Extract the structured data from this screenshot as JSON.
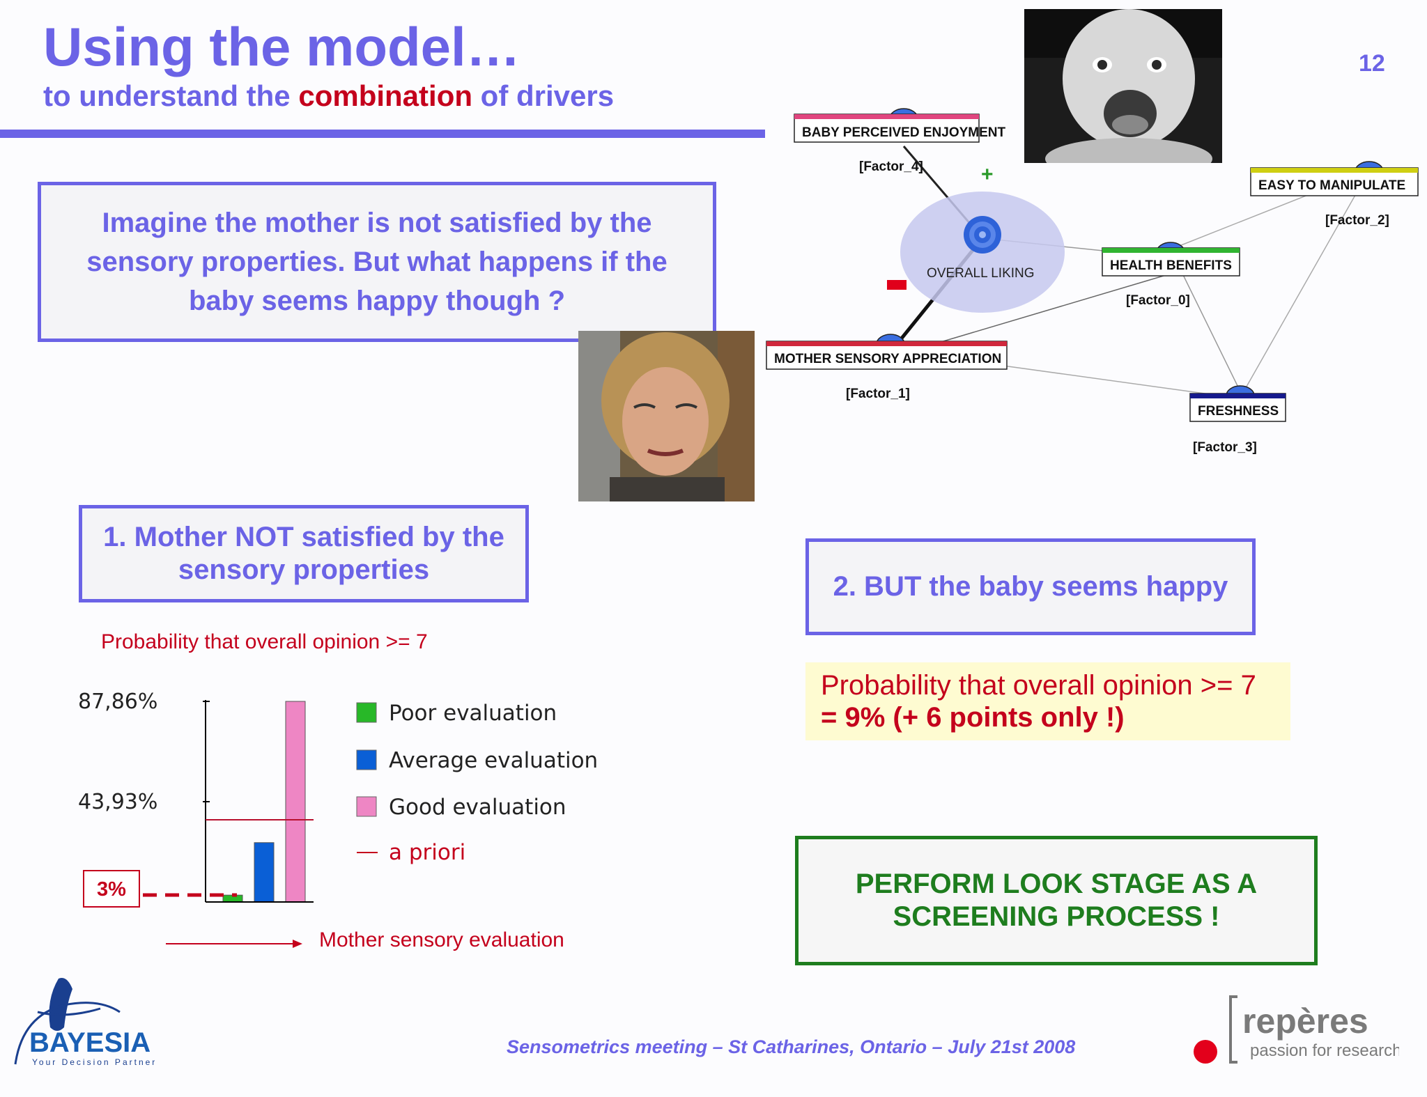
{
  "header": {
    "title": "Using the model…",
    "subtitle_before": "to understand the ",
    "subtitle_highlight": "combination",
    "subtitle_after": " of drivers",
    "slide_number": "12"
  },
  "intro": "Imagine the mother is not satisfied by the sensory properties. But what happens if the baby seems happy though ?",
  "step1": "1. Mother NOT satisfied by the sensory properties",
  "step2": "2. BUT the baby seems happy",
  "probability_note": {
    "line1": "Probability that overall opinion >= 7",
    "line2": "= 9% (+ 6 points only !)"
  },
  "recommendation": "PERFORM LOOK STAGE AS A SCREENING PROCESS !",
  "network": {
    "nodes": [
      {
        "id": "baby",
        "label": "BABY PERCEIVED ENJOYMENT",
        "factor": "[Factor_4]",
        "color": "#e0457e"
      },
      {
        "id": "easy",
        "label": "EASY TO MANIPULATE",
        "factor": "[Factor_2]",
        "color": "#cfcf12"
      },
      {
        "id": "health",
        "label": "HEALTH BENEFITS",
        "factor": "[Factor_0]",
        "color": "#31b531"
      },
      {
        "id": "mother",
        "label": "MOTHER SENSORY APPRECIATION",
        "factor": "[Factor_1]",
        "color": "#d0283c"
      },
      {
        "id": "fresh",
        "label": "FRESHNESS",
        "factor": "[Factor_3]",
        "color": "#161a8c"
      },
      {
        "id": "overall",
        "label": "OVERALL LIKING",
        "factor": "",
        "color": "#3b6ee0"
      }
    ],
    "plus_sign": "+",
    "minus_color": "#e0001b"
  },
  "chart_data": {
    "type": "bar",
    "title": "Probability that overall opinion >= 7",
    "xlabel": "Mother sensory evaluation",
    "ylabel": "",
    "categories": [
      "Poor evaluation",
      "Average evaluation",
      "Good evaluation"
    ],
    "values": [
      3,
      26,
      87.86
    ],
    "colors": [
      "#28b828",
      "#0a5fd6",
      "#ee86c4"
    ],
    "a_priori": 36,
    "a_priori_label": "a priori",
    "y_ticks": [
      "87,86%",
      "43,93%"
    ],
    "y_tick_values": [
      87.86,
      43.93
    ],
    "ylim": [
      0,
      87.86
    ],
    "callout": "3%"
  },
  "footer": {
    "text": "Sensometrics meeting – St Catharines, Ontario – July 21st  2008",
    "bayesia_name": "BAYESIA",
    "bayesia_tagline": "Your Decision Partner",
    "reperes_name": "repères",
    "reperes_tagline": "passion for research"
  }
}
